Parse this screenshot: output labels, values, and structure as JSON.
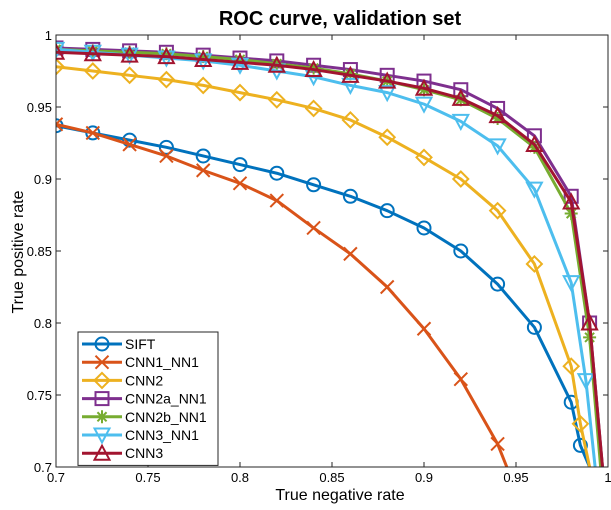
{
  "chart_data": {
    "type": "line",
    "title": "ROC curve, validation set",
    "xlabel": "True negative rate",
    "ylabel": "True positive rate",
    "xlim": [
      0.7,
      1.0
    ],
    "ylim": [
      0.7,
      1.0
    ],
    "xticks": [
      0.7,
      0.75,
      0.8,
      0.85,
      0.9,
      0.95,
      1
    ],
    "xtick_labels": [
      "0.7",
      "0.75",
      "0.8",
      "0.85",
      "0.9",
      "0.95",
      "1"
    ],
    "yticks": [
      0.7,
      0.75,
      0.8,
      0.85,
      0.9,
      0.95,
      1
    ],
    "ytick_labels": [
      "0.7",
      "0.75",
      "0.8",
      "0.85",
      "0.9",
      "0.95",
      "1"
    ],
    "grid": false,
    "legend_position": "bottom-left",
    "series": [
      {
        "name": "SIFT",
        "color": "#0072BD",
        "marker": "circle",
        "x": [
          0.7,
          0.72,
          0.74,
          0.76,
          0.78,
          0.8,
          0.82,
          0.84,
          0.86,
          0.88,
          0.9,
          0.92,
          0.94,
          0.96,
          0.98,
          0.985,
          0.99
        ],
        "y": [
          0.937,
          0.932,
          0.927,
          0.922,
          0.916,
          0.91,
          0.904,
          0.896,
          0.888,
          0.878,
          0.866,
          0.85,
          0.827,
          0.797,
          0.745,
          0.715,
          0.7
        ]
      },
      {
        "name": "CNN1_NN1",
        "color": "#D95319",
        "marker": "x",
        "x": [
          0.7,
          0.72,
          0.74,
          0.76,
          0.78,
          0.8,
          0.82,
          0.84,
          0.86,
          0.88,
          0.9,
          0.92,
          0.94,
          0.945
        ],
        "y": [
          0.938,
          0.932,
          0.924,
          0.916,
          0.906,
          0.897,
          0.885,
          0.866,
          0.848,
          0.825,
          0.796,
          0.761,
          0.716,
          0.7
        ]
      },
      {
        "name": "CNN2",
        "color": "#EDB120",
        "marker": "diamond",
        "x": [
          0.7,
          0.72,
          0.74,
          0.76,
          0.78,
          0.8,
          0.82,
          0.84,
          0.86,
          0.88,
          0.9,
          0.92,
          0.94,
          0.96,
          0.98,
          0.985,
          0.99
        ],
        "y": [
          0.978,
          0.975,
          0.972,
          0.969,
          0.965,
          0.96,
          0.955,
          0.949,
          0.941,
          0.929,
          0.915,
          0.9,
          0.878,
          0.841,
          0.77,
          0.73,
          0.7
        ]
      },
      {
        "name": "CNN2a_NN1",
        "color": "#7E2F8E",
        "marker": "square",
        "x": [
          0.7,
          0.72,
          0.74,
          0.76,
          0.78,
          0.8,
          0.82,
          0.84,
          0.86,
          0.88,
          0.9,
          0.92,
          0.94,
          0.96,
          0.98,
          0.99,
          0.997
        ],
        "y": [
          0.991,
          0.99,
          0.989,
          0.988,
          0.986,
          0.984,
          0.982,
          0.979,
          0.976,
          0.972,
          0.968,
          0.962,
          0.949,
          0.93,
          0.888,
          0.8,
          0.7
        ]
      },
      {
        "name": "CNN2b_NN1",
        "color": "#77AC30",
        "marker": "asterisk",
        "x": [
          0.7,
          0.72,
          0.74,
          0.76,
          0.78,
          0.8,
          0.82,
          0.84,
          0.86,
          0.88,
          0.9,
          0.92,
          0.94,
          0.96,
          0.98,
          0.99,
          0.996
        ],
        "y": [
          0.99,
          0.989,
          0.988,
          0.987,
          0.985,
          0.983,
          0.98,
          0.977,
          0.973,
          0.968,
          0.962,
          0.955,
          0.942,
          0.922,
          0.876,
          0.79,
          0.7
        ]
      },
      {
        "name": "CNN3_NN1",
        "color": "#4DBEEE",
        "marker": "triangle-down",
        "x": [
          0.7,
          0.72,
          0.74,
          0.76,
          0.78,
          0.8,
          0.82,
          0.84,
          0.86,
          0.88,
          0.9,
          0.92,
          0.94,
          0.96,
          0.98,
          0.988,
          0.993
        ],
        "y": [
          0.99,
          0.988,
          0.986,
          0.984,
          0.982,
          0.979,
          0.975,
          0.971,
          0.965,
          0.96,
          0.952,
          0.94,
          0.923,
          0.893,
          0.828,
          0.76,
          0.7
        ]
      },
      {
        "name": "CNN3",
        "color": "#A2142F",
        "marker": "triangle-up",
        "x": [
          0.7,
          0.72,
          0.74,
          0.76,
          0.78,
          0.8,
          0.82,
          0.84,
          0.86,
          0.88,
          0.9,
          0.92,
          0.94,
          0.96,
          0.98,
          0.99,
          0.997
        ],
        "y": [
          0.988,
          0.987,
          0.986,
          0.985,
          0.983,
          0.981,
          0.979,
          0.976,
          0.972,
          0.968,
          0.963,
          0.956,
          0.944,
          0.924,
          0.884,
          0.8,
          0.7
        ]
      }
    ]
  }
}
